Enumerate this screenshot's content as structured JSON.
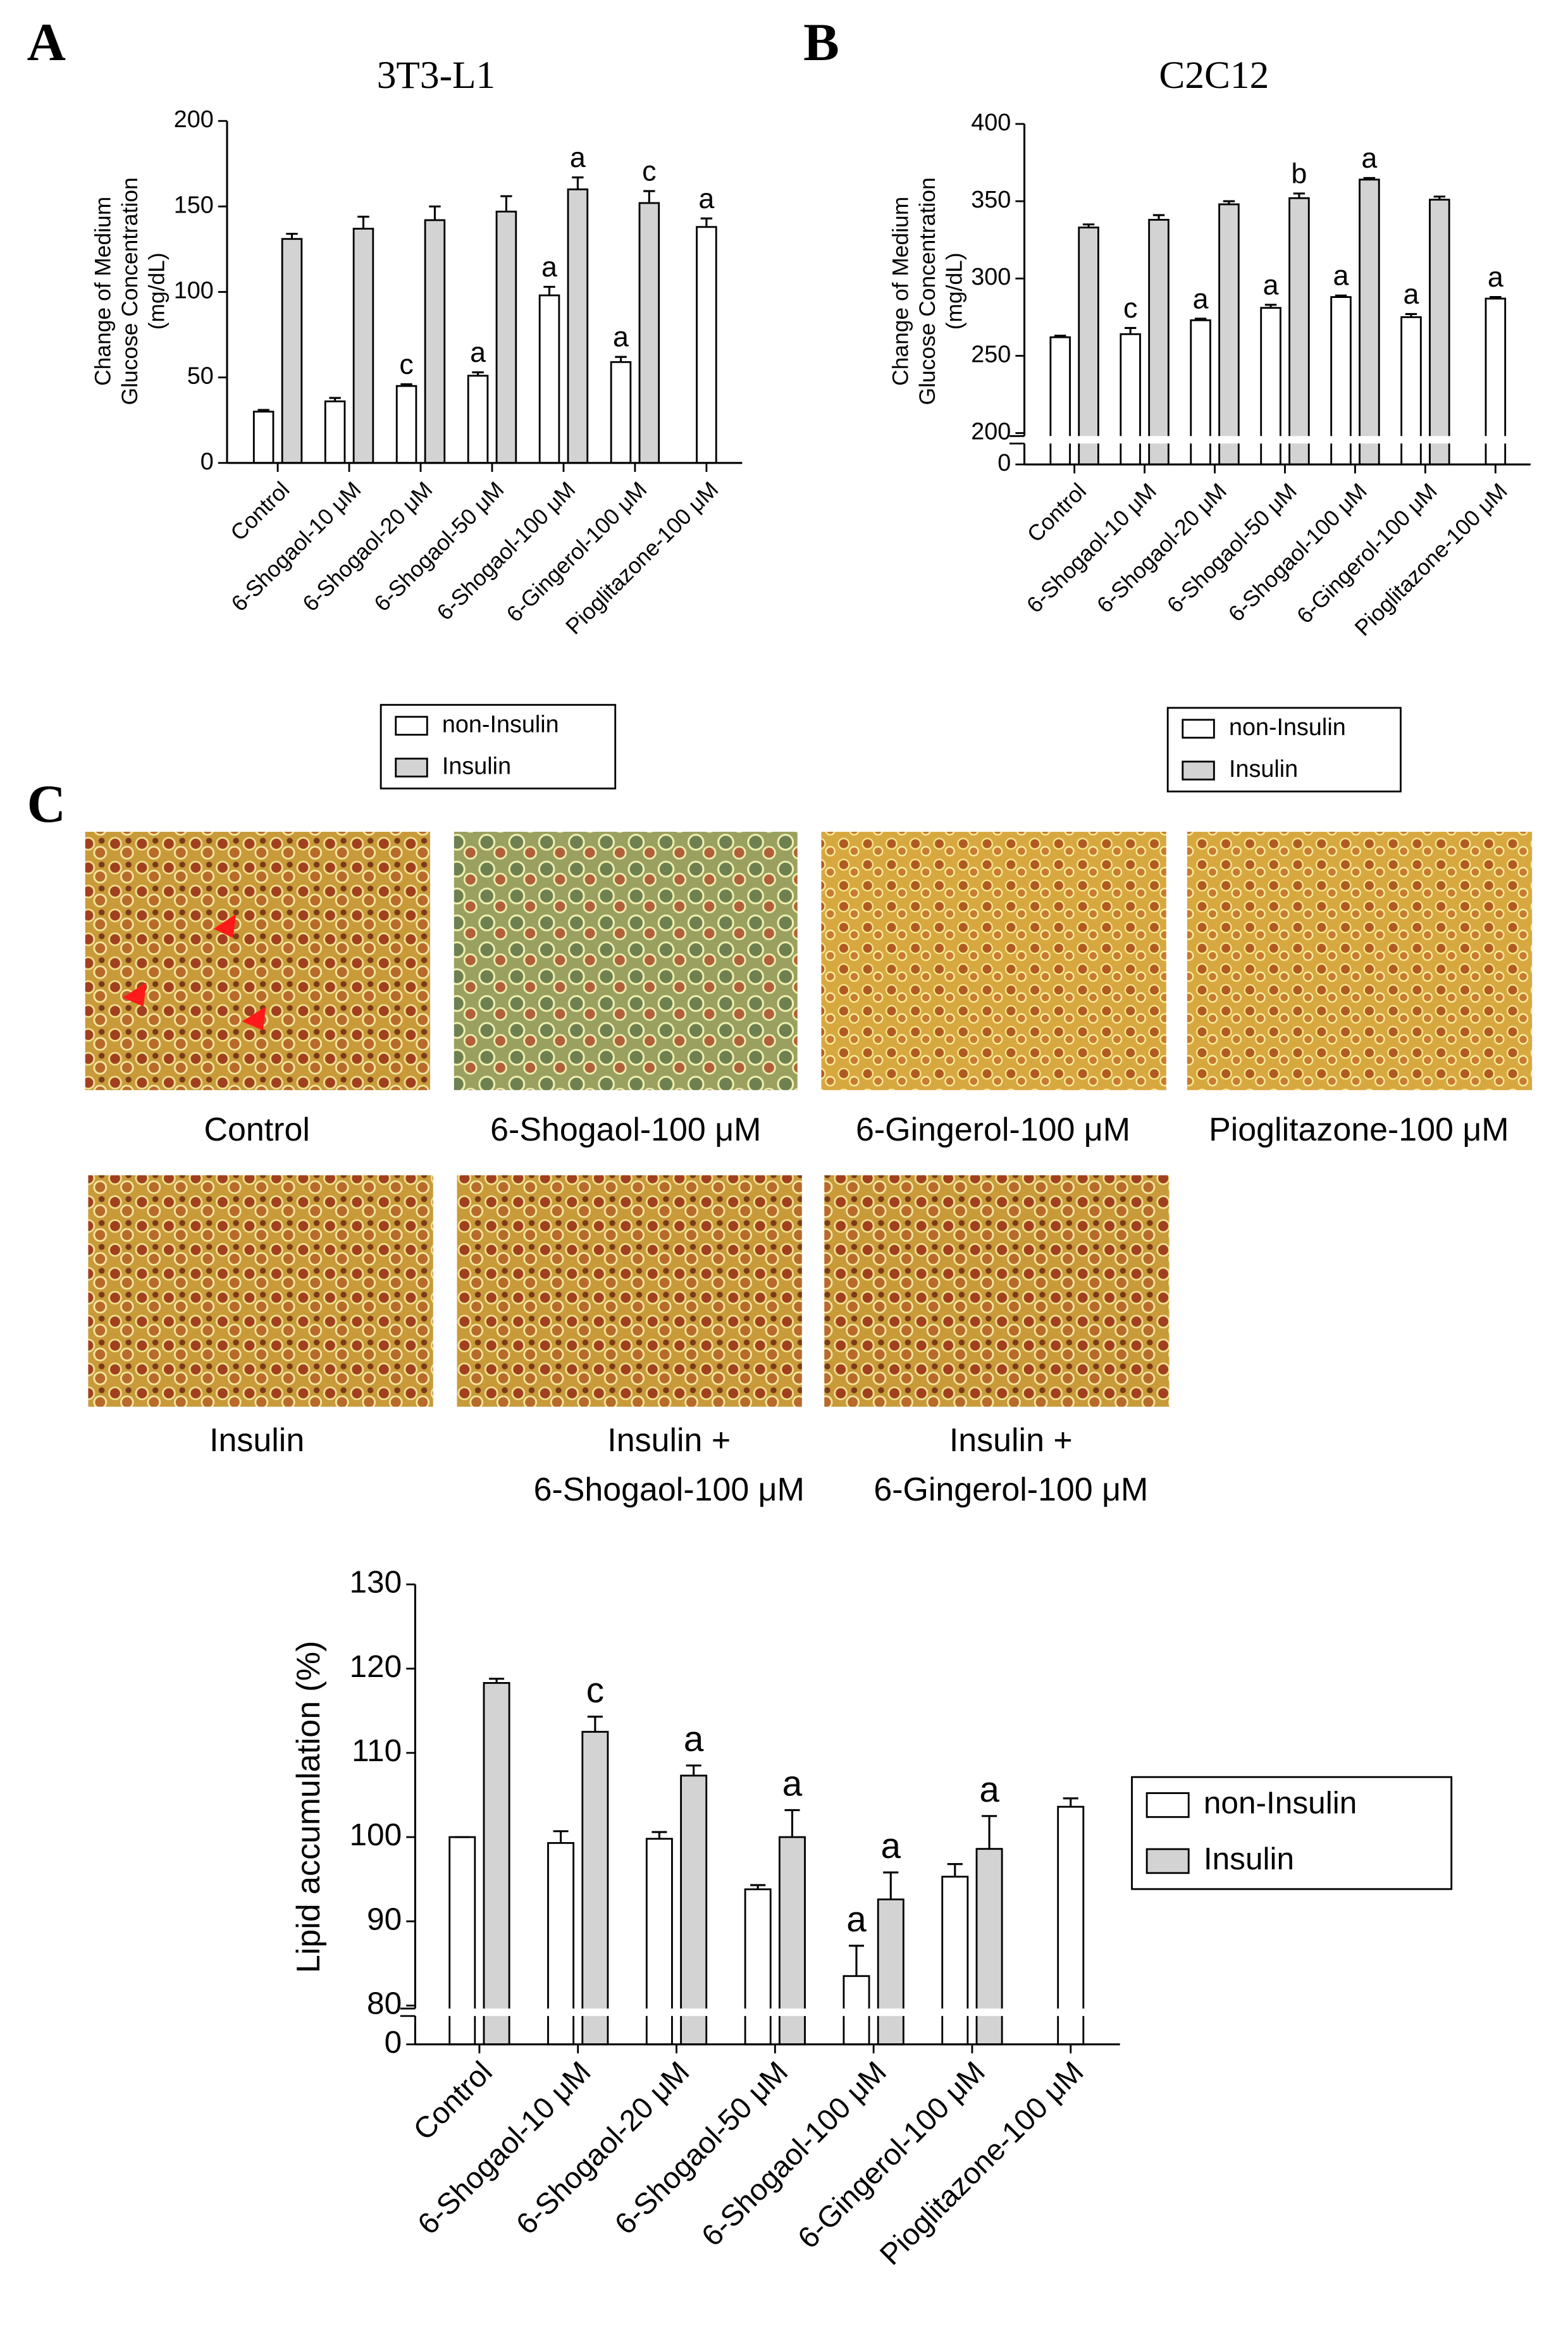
{
  "panels": [
    "A",
    "B",
    "C"
  ],
  "chart_data": [
    {
      "type": "bar",
      "title": "3T3-L1",
      "ylabel": [
        "Change of Medium",
        "Glucose Concentration",
        "(mg/dL)"
      ],
      "categories": [
        "Control",
        "6-Shogaol-10 μM",
        "6-Shogaol-20 μM",
        "6-Shogaol-50 μM",
        "6-Shogaol-100 μM",
        "6-Gingerol-100 μM",
        "Pioglitazone-100 μM"
      ],
      "series": [
        {
          "name": "non-Insulin",
          "color": "#ffffff",
          "values": [
            30,
            36,
            45,
            51,
            98,
            59,
            138
          ],
          "errors": [
            1,
            2,
            1,
            2,
            5,
            3,
            5
          ],
          "annotations": [
            null,
            null,
            "c",
            "a",
            "a",
            "a",
            "a"
          ]
        },
        {
          "name": "Insulin",
          "color": "#d3d3d3",
          "values": [
            131,
            137,
            142,
            147,
            160,
            152,
            null
          ],
          "errors": [
            3,
            7,
            8,
            9,
            7,
            7,
            null
          ],
          "annotations": [
            null,
            null,
            null,
            null,
            "a",
            "c",
            null
          ]
        }
      ],
      "ylim": [
        0,
        200
      ],
      "yticks": [
        0,
        50,
        100,
        150,
        200
      ]
    },
    {
      "type": "bar",
      "title": "C2C12",
      "ylabel": [
        "Change of Medium",
        "Glucose Concentration",
        "(mg/dL)"
      ],
      "categories": [
        "Control",
        "6-Shogaol-10 μM",
        "6-Shogaol-20 μM",
        "6-Shogaol-50 μM",
        "6-Shogaol-100 μM",
        "6-Gingerol-100 μM",
        "Pioglitazone-100 μM"
      ],
      "series": [
        {
          "name": "non-Insulin",
          "color": "#ffffff",
          "values": [
            262,
            264,
            273,
            281,
            288,
            275,
            287
          ],
          "errors": [
            1,
            4,
            1,
            2,
            1,
            2,
            1
          ],
          "annotations": [
            null,
            "c",
            "a",
            "a",
            "a",
            "a",
            "a"
          ]
        },
        {
          "name": "Insulin",
          "color": "#d3d3d3",
          "values": [
            333,
            338,
            348,
            352,
            364,
            351,
            null
          ],
          "errors": [
            2,
            3,
            2,
            3,
            1,
            2,
            null
          ],
          "annotations": [
            null,
            null,
            null,
            "b",
            "a",
            null,
            null
          ]
        }
      ],
      "ylim": [
        0,
        400
      ],
      "ybreak": [
        0,
        200
      ],
      "yticks": [
        0,
        200,
        250,
        300,
        350,
        400
      ]
    },
    {
      "type": "bar",
      "ylabel": [
        "Lipid accumulation (%)"
      ],
      "categories": [
        "Control",
        "6-Shogaol-10 μM",
        "6-Shogaol-20 μM",
        "6-Shogaol-50 μM",
        "6-Shogaol-100 μM",
        "6-Gingerol-100 μM",
        "Pioglitazone-100 μM"
      ],
      "series": [
        {
          "name": "non-Insulin",
          "color": "#ffffff",
          "values": [
            100,
            99.3,
            99.8,
            93.8,
            83.5,
            95.3,
            103.6
          ],
          "errors": [
            0,
            1.4,
            0.8,
            0.5,
            3.6,
            1.5,
            1
          ],
          "annotations": [
            null,
            null,
            null,
            null,
            "a",
            null,
            null
          ]
        },
        {
          "name": "Insulin",
          "color": "#d3d3d3",
          "values": [
            118.3,
            112.5,
            107.3,
            100,
            92.6,
            98.6,
            null
          ],
          "errors": [
            0.5,
            1.8,
            1.2,
            3.2,
            3.2,
            3.9,
            null
          ],
          "annotations": [
            null,
            "c",
            "a",
            "a",
            "a",
            "a",
            null
          ]
        }
      ],
      "ylim": [
        0,
        130
      ],
      "ybreak": [
        0,
        80
      ],
      "yticks": [
        0,
        80,
        90,
        100,
        110,
        120,
        130
      ]
    }
  ],
  "images": [
    {
      "caption": [
        "Control"
      ]
    },
    {
      "caption": [
        "6-Shogaol-100 μM"
      ]
    },
    {
      "caption": [
        "6-Gingerol-100 μM"
      ]
    },
    {
      "caption": [
        "Pioglitazone-100 μM"
      ]
    },
    {
      "caption": [
        "Insulin"
      ]
    },
    {
      "caption": [
        "Insulin +",
        "6-Shogaol-100 μM"
      ]
    },
    {
      "caption": [
        "Insulin +",
        "6-Gingerol-100 μM"
      ]
    }
  ]
}
